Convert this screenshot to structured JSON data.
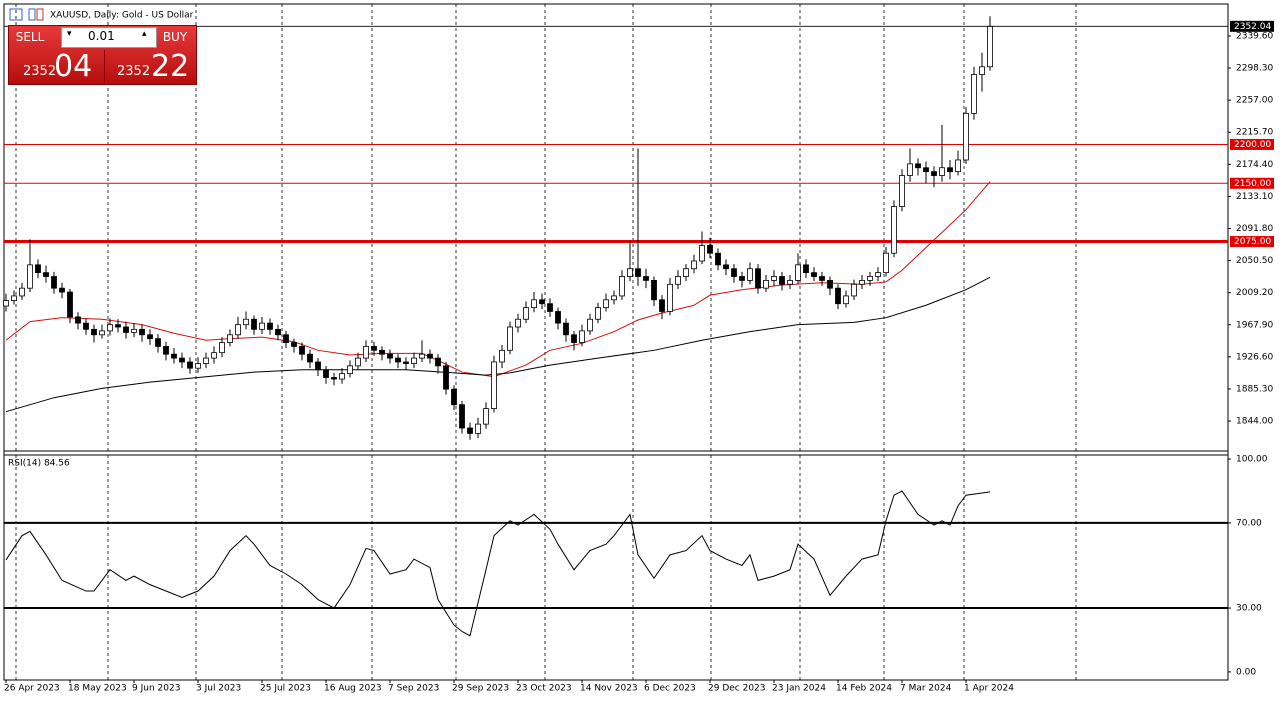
{
  "header": {
    "title": "XAUUSD, Daily:  Gold - US Dollar"
  },
  "trade_panel": {
    "sell": "SELL",
    "buy": "BUY",
    "volume": "0.01",
    "sell_price": {
      "main": "2352",
      "pips": "04"
    },
    "buy_price": {
      "main": "2352",
      "pips": "22"
    }
  },
  "chart_data": [
    {
      "type": "candlestick",
      "categories": [
        "26 Apr 2023",
        null,
        null,
        null,
        null,
        null,
        null,
        null,
        "18 May 2023",
        null,
        null,
        null,
        null,
        null,
        null,
        null,
        "9 Jun 2023",
        null,
        null,
        null,
        null,
        null,
        null,
        null,
        "3 Jul 2023",
        null,
        null,
        null,
        null,
        null,
        null,
        null,
        "25 Jul 2023",
        null,
        null,
        null,
        null,
        null,
        null,
        null,
        "16 Aug 2023",
        null,
        null,
        null,
        null,
        null,
        null,
        null,
        "7 Sep 2023",
        null,
        null,
        null,
        null,
        null,
        null,
        null,
        "29 Sep 2023",
        null,
        null,
        null,
        null,
        null,
        null,
        null,
        "23 Oct 2023",
        null,
        null,
        null,
        null,
        null,
        null,
        null,
        "14 Nov 2023",
        null,
        null,
        null,
        null,
        null,
        null,
        null,
        "6 Dec 2023",
        null,
        null,
        null,
        null,
        null,
        null,
        null,
        "29 Dec 2023",
        null,
        null,
        null,
        null,
        null,
        null,
        null,
        "23 Jan 2024",
        null,
        null,
        null,
        null,
        null,
        null,
        null,
        "14 Feb 2024",
        null,
        null,
        null,
        null,
        null,
        null,
        null,
        "7 Mar 2024",
        null,
        null,
        null,
        null,
        null,
        null,
        null,
        "1 Apr 2024",
        null,
        null,
        null
      ],
      "ohlc": [
        [
          1992,
          2008,
          1985,
          1999
        ],
        [
          1999,
          2012,
          1994,
          2005
        ],
        [
          2005,
          2022,
          2000,
          2015
        ],
        [
          2015,
          2078,
          2010,
          2045
        ],
        [
          2045,
          2052,
          2028,
          2035
        ],
        [
          2035,
          2044,
          2022,
          2030
        ],
        [
          2030,
          2036,
          2008,
          2015
        ],
        [
          2015,
          2022,
          2002,
          2010
        ],
        [
          2010,
          2014,
          1970,
          1978
        ],
        [
          1978,
          1984,
          1962,
          1970
        ],
        [
          1970,
          1976,
          1955,
          1962
        ],
        [
          1962,
          1968,
          1945,
          1955
        ],
        [
          1955,
          1968,
          1950,
          1960
        ],
        [
          1960,
          1976,
          1954,
          1968
        ],
        [
          1968,
          1975,
          1958,
          1965
        ],
        [
          1965,
          1972,
          1950,
          1958
        ],
        [
          1958,
          1970,
          1952,
          1962
        ],
        [
          1962,
          1968,
          1946,
          1955
        ],
        [
          1955,
          1962,
          1942,
          1950
        ],
        [
          1950,
          1956,
          1932,
          1940
        ],
        [
          1940,
          1946,
          1922,
          1930
        ],
        [
          1930,
          1938,
          1918,
          1925
        ],
        [
          1925,
          1932,
          1912,
          1920
        ],
        [
          1920,
          1926,
          1905,
          1912
        ],
        [
          1912,
          1926,
          1906,
          1918
        ],
        [
          1918,
          1932,
          1912,
          1925
        ],
        [
          1925,
          1940,
          1918,
          1932
        ],
        [
          1932,
          1952,
          1926,
          1945
        ],
        [
          1945,
          1962,
          1940,
          1955
        ],
        [
          1955,
          1978,
          1950,
          1968
        ],
        [
          1968,
          1985,
          1962,
          1975
        ],
        [
          1975,
          1980,
          1955,
          1962
        ],
        [
          1962,
          1978,
          1956,
          1970
        ],
        [
          1970,
          1976,
          1955,
          1962
        ],
        [
          1962,
          1968,
          1948,
          1955
        ],
        [
          1955,
          1960,
          1938,
          1945
        ],
        [
          1945,
          1950,
          1932,
          1940
        ],
        [
          1940,
          1945,
          1922,
          1930
        ],
        [
          1930,
          1936,
          1912,
          1920
        ],
        [
          1920,
          1925,
          1902,
          1910
        ],
        [
          1910,
          1915,
          1892,
          1900
        ],
        [
          1900,
          1906,
          1890,
          1898
        ],
        [
          1898,
          1912,
          1892,
          1905
        ],
        [
          1905,
          1922,
          1900,
          1915
        ],
        [
          1915,
          1932,
          1910,
          1925
        ],
        [
          1925,
          1948,
          1920,
          1940
        ],
        [
          1940,
          1946,
          1928,
          1935
        ],
        [
          1935,
          1940,
          1922,
          1930
        ],
        [
          1930,
          1936,
          1918,
          1925
        ],
        [
          1925,
          1930,
          1912,
          1920
        ],
        [
          1920,
          1926,
          1910,
          1918
        ],
        [
          1918,
          1932,
          1912,
          1925
        ],
        [
          1925,
          1948,
          1920,
          1930
        ],
        [
          1930,
          1936,
          1918,
          1925
        ],
        [
          1925,
          1930,
          1905,
          1915
        ],
        [
          1915,
          1920,
          1878,
          1885
        ],
        [
          1885,
          1890,
          1858,
          1865
        ],
        [
          1865,
          1870,
          1828,
          1835
        ],
        [
          1835,
          1842,
          1820,
          1828
        ],
        [
          1828,
          1848,
          1822,
          1840
        ],
        [
          1840,
          1868,
          1834,
          1860
        ],
        [
          1860,
          1928,
          1855,
          1920
        ],
        [
          1920,
          1942,
          1912,
          1935
        ],
        [
          1935,
          1972,
          1930,
          1965
        ],
        [
          1965,
          1982,
          1958,
          1975
        ],
        [
          1975,
          1998,
          1970,
          1990
        ],
        [
          1990,
          2010,
          1984,
          2000
        ],
        [
          2000,
          2008,
          1988,
          1995
        ],
        [
          1995,
          2002,
          1978,
          1985
        ],
        [
          1985,
          1990,
          1962,
          1970
        ],
        [
          1970,
          1976,
          1946,
          1955
        ],
        [
          1955,
          1960,
          1935,
          1945
        ],
        [
          1945,
          1968,
          1940,
          1960
        ],
        [
          1960,
          1982,
          1955,
          1975
        ],
        [
          1975,
          1996,
          1970,
          1990
        ],
        [
          1990,
          2008,
          1985,
          2000
        ],
        [
          2000,
          2012,
          1994,
          2005
        ],
        [
          2005,
          2038,
          2000,
          2030
        ],
        [
          2030,
          2075,
          2024,
          2040
        ],
        [
          2040,
          2195,
          2018,
          2030
        ],
        [
          2030,
          2040,
          2015,
          2025
        ],
        [
          2025,
          2030,
          1992,
          2000
        ],
        [
          2000,
          2006,
          1975,
          1985
        ],
        [
          1985,
          2028,
          1980,
          2020
        ],
        [
          2020,
          2038,
          2014,
          2030
        ],
        [
          2030,
          2046,
          2024,
          2040
        ],
        [
          2040,
          2058,
          2034,
          2050
        ],
        [
          2050,
          2088,
          2046,
          2070
        ],
        [
          2070,
          2080,
          2054,
          2060
        ],
        [
          2060,
          2066,
          2038,
          2045
        ],
        [
          2045,
          2052,
          2032,
          2040
        ],
        [
          2040,
          2046,
          2022,
          2030
        ],
        [
          2030,
          2036,
          2016,
          2025
        ],
        [
          2025,
          2048,
          2020,
          2040
        ],
        [
          2040,
          2046,
          2008,
          2015
        ],
        [
          2015,
          2032,
          2010,
          2025
        ],
        [
          2025,
          2038,
          2018,
          2030
        ],
        [
          2030,
          2036,
          2012,
          2020
        ],
        [
          2020,
          2032,
          2014,
          2025
        ],
        [
          2025,
          2060,
          2020,
          2045
        ],
        [
          2045,
          2052,
          2028,
          2035
        ],
        [
          2035,
          2042,
          2024,
          2030
        ],
        [
          2030,
          2036,
          2018,
          2025
        ],
        [
          2025,
          2030,
          2006,
          2015
        ],
        [
          2015,
          2020,
          1988,
          1995
        ],
        [
          1995,
          2012,
          1990,
          2005
        ],
        [
          2005,
          2026,
          2000,
          2020
        ],
        [
          2020,
          2032,
          2014,
          2025
        ],
        [
          2025,
          2036,
          2018,
          2030
        ],
        [
          2030,
          2042,
          2024,
          2035
        ],
        [
          2035,
          2068,
          2030,
          2060
        ],
        [
          2060,
          2128,
          2055,
          2120
        ],
        [
          2120,
          2168,
          2114,
          2160
        ],
        [
          2160,
          2195,
          2152,
          2175
        ],
        [
          2175,
          2182,
          2160,
          2170
        ],
        [
          2170,
          2178,
          2150,
          2165
        ],
        [
          2165,
          2172,
          2145,
          2160
        ],
        [
          2160,
          2225,
          2152,
          2170
        ],
        [
          2170,
          2180,
          2155,
          2165
        ],
        [
          2165,
          2192,
          2160,
          2180
        ],
        [
          2180,
          2248,
          2175,
          2240
        ],
        [
          2240,
          2300,
          2232,
          2290
        ],
        [
          2290,
          2318,
          2268,
          2300
        ],
        [
          2300,
          2365,
          2295,
          2352.04
        ]
      ],
      "ylim": [
        1805.4,
        2378.2
      ],
      "yticks": [
        {
          "value": 2339.6,
          "label": "2339.60"
        },
        {
          "value": 2298.3,
          "label": "2298.30"
        },
        {
          "value": 2257,
          "label": "2257.00"
        },
        {
          "value": 2215.7,
          "label": "2215.70"
        },
        {
          "value": 2174.4,
          "label": "2174.40"
        },
        {
          "value": 2133.1,
          "label": "2133.10"
        },
        {
          "value": 2091.8,
          "label": "2091.80"
        },
        {
          "value": 2050.5,
          "label": "2050.50"
        },
        {
          "value": 2009.2,
          "label": "2009.20"
        },
        {
          "value": 1967.9,
          "label": "1967.90"
        },
        {
          "value": 1926.6,
          "label": "1926.60"
        },
        {
          "value": 1885.3,
          "label": "1885.30"
        },
        {
          "value": 1844,
          "label": "1844.00"
        }
      ],
      "overlays": [
        {
          "color": "#d01010",
          "x": [
            0,
            3,
            7,
            12,
            17,
            21,
            25,
            28,
            32,
            36,
            39,
            43,
            47,
            52,
            54,
            57,
            61,
            65,
            68,
            72,
            76,
            79,
            82,
            86,
            88,
            92,
            97,
            102,
            107,
            110,
            112,
            116,
            120,
            123
          ],
          "values": [
            1948,
            1972,
            1977,
            1975,
            1968,
            1957,
            1948,
            1950,
            1952,
            1946,
            1935,
            1929,
            1931,
            1931,
            1922,
            1907,
            1901,
            1916,
            1935,
            1944,
            1959,
            1974,
            1983,
            1993,
            2006,
            2013,
            2019,
            2022,
            2020,
            2023,
            2038,
            2077,
            2116,
            2152
          ]
        },
        {
          "color": "#000000",
          "x": [
            0,
            6,
            12,
            18,
            25,
            31,
            37,
            43,
            50,
            56,
            60,
            63,
            68,
            74,
            81,
            87,
            93,
            99,
            106,
            110,
            115,
            120,
            123
          ],
          "values": [
            1856,
            1874,
            1886,
            1894,
            1901,
            1907,
            1910,
            1910,
            1910,
            1906,
            1903,
            1906,
            1916,
            1925,
            1935,
            1948,
            1959,
            1968,
            1971,
            1977,
            1993,
            2013,
            2029
          ]
        }
      ],
      "levels": [
        {
          "value": 2200,
          "label": "2200.00",
          "color": "#e00000",
          "emphasis": false
        },
        {
          "value": 2150,
          "label": "2150.00",
          "color": "#e00000",
          "emphasis": false
        },
        {
          "value": 2075,
          "label": "2075.00",
          "color": "#e00000",
          "emphasis": true
        }
      ]
    },
    {
      "type": "line",
      "title": "RSI(14) 84.56",
      "color": "#000000",
      "x": [
        0,
        2,
        3,
        5,
        7,
        10,
        11,
        13,
        15,
        16,
        18,
        20,
        22,
        24,
        26,
        28,
        30,
        31,
        33,
        35,
        37,
        39,
        41,
        43,
        45,
        46,
        48,
        50,
        51,
        53,
        54,
        56,
        57,
        58,
        60,
        61,
        63,
        64,
        66,
        68,
        69,
        71,
        73,
        75,
        76,
        78,
        79,
        81,
        83,
        85,
        87,
        88,
        90,
        92,
        93,
        94,
        96,
        98,
        99,
        101,
        103,
        105,
        107,
        109,
        110,
        111,
        112,
        114,
        116,
        117,
        118,
        119,
        120,
        123
      ],
      "values": [
        52.6,
        64,
        66,
        55,
        43,
        38,
        38,
        48,
        43,
        45,
        41,
        38,
        35,
        38,
        45,
        57,
        64,
        60,
        50,
        46,
        41,
        34,
        30,
        41,
        58,
        57,
        46,
        48,
        53,
        49,
        34,
        22,
        19,
        17,
        48,
        64,
        71,
        69,
        74,
        67,
        60,
        48,
        57,
        60,
        64,
        74,
        55,
        44,
        55,
        57,
        64,
        57,
        53,
        50,
        55,
        43,
        45,
        48,
        60,
        53,
        36,
        45,
        53,
        55,
        71,
        83,
        85,
        74,
        69,
        71,
        69,
        78,
        83,
        84.56
      ],
      "ylim": [
        -3.8,
        101.9
      ],
      "yticks": [
        {
          "value": 100,
          "label": "100.00"
        },
        {
          "value": 70,
          "label": "70.00"
        },
        {
          "value": 30,
          "label": "30.00"
        },
        {
          "value": 0,
          "label": "0.00"
        }
      ],
      "levels": [
        70,
        30
      ]
    }
  ]
}
